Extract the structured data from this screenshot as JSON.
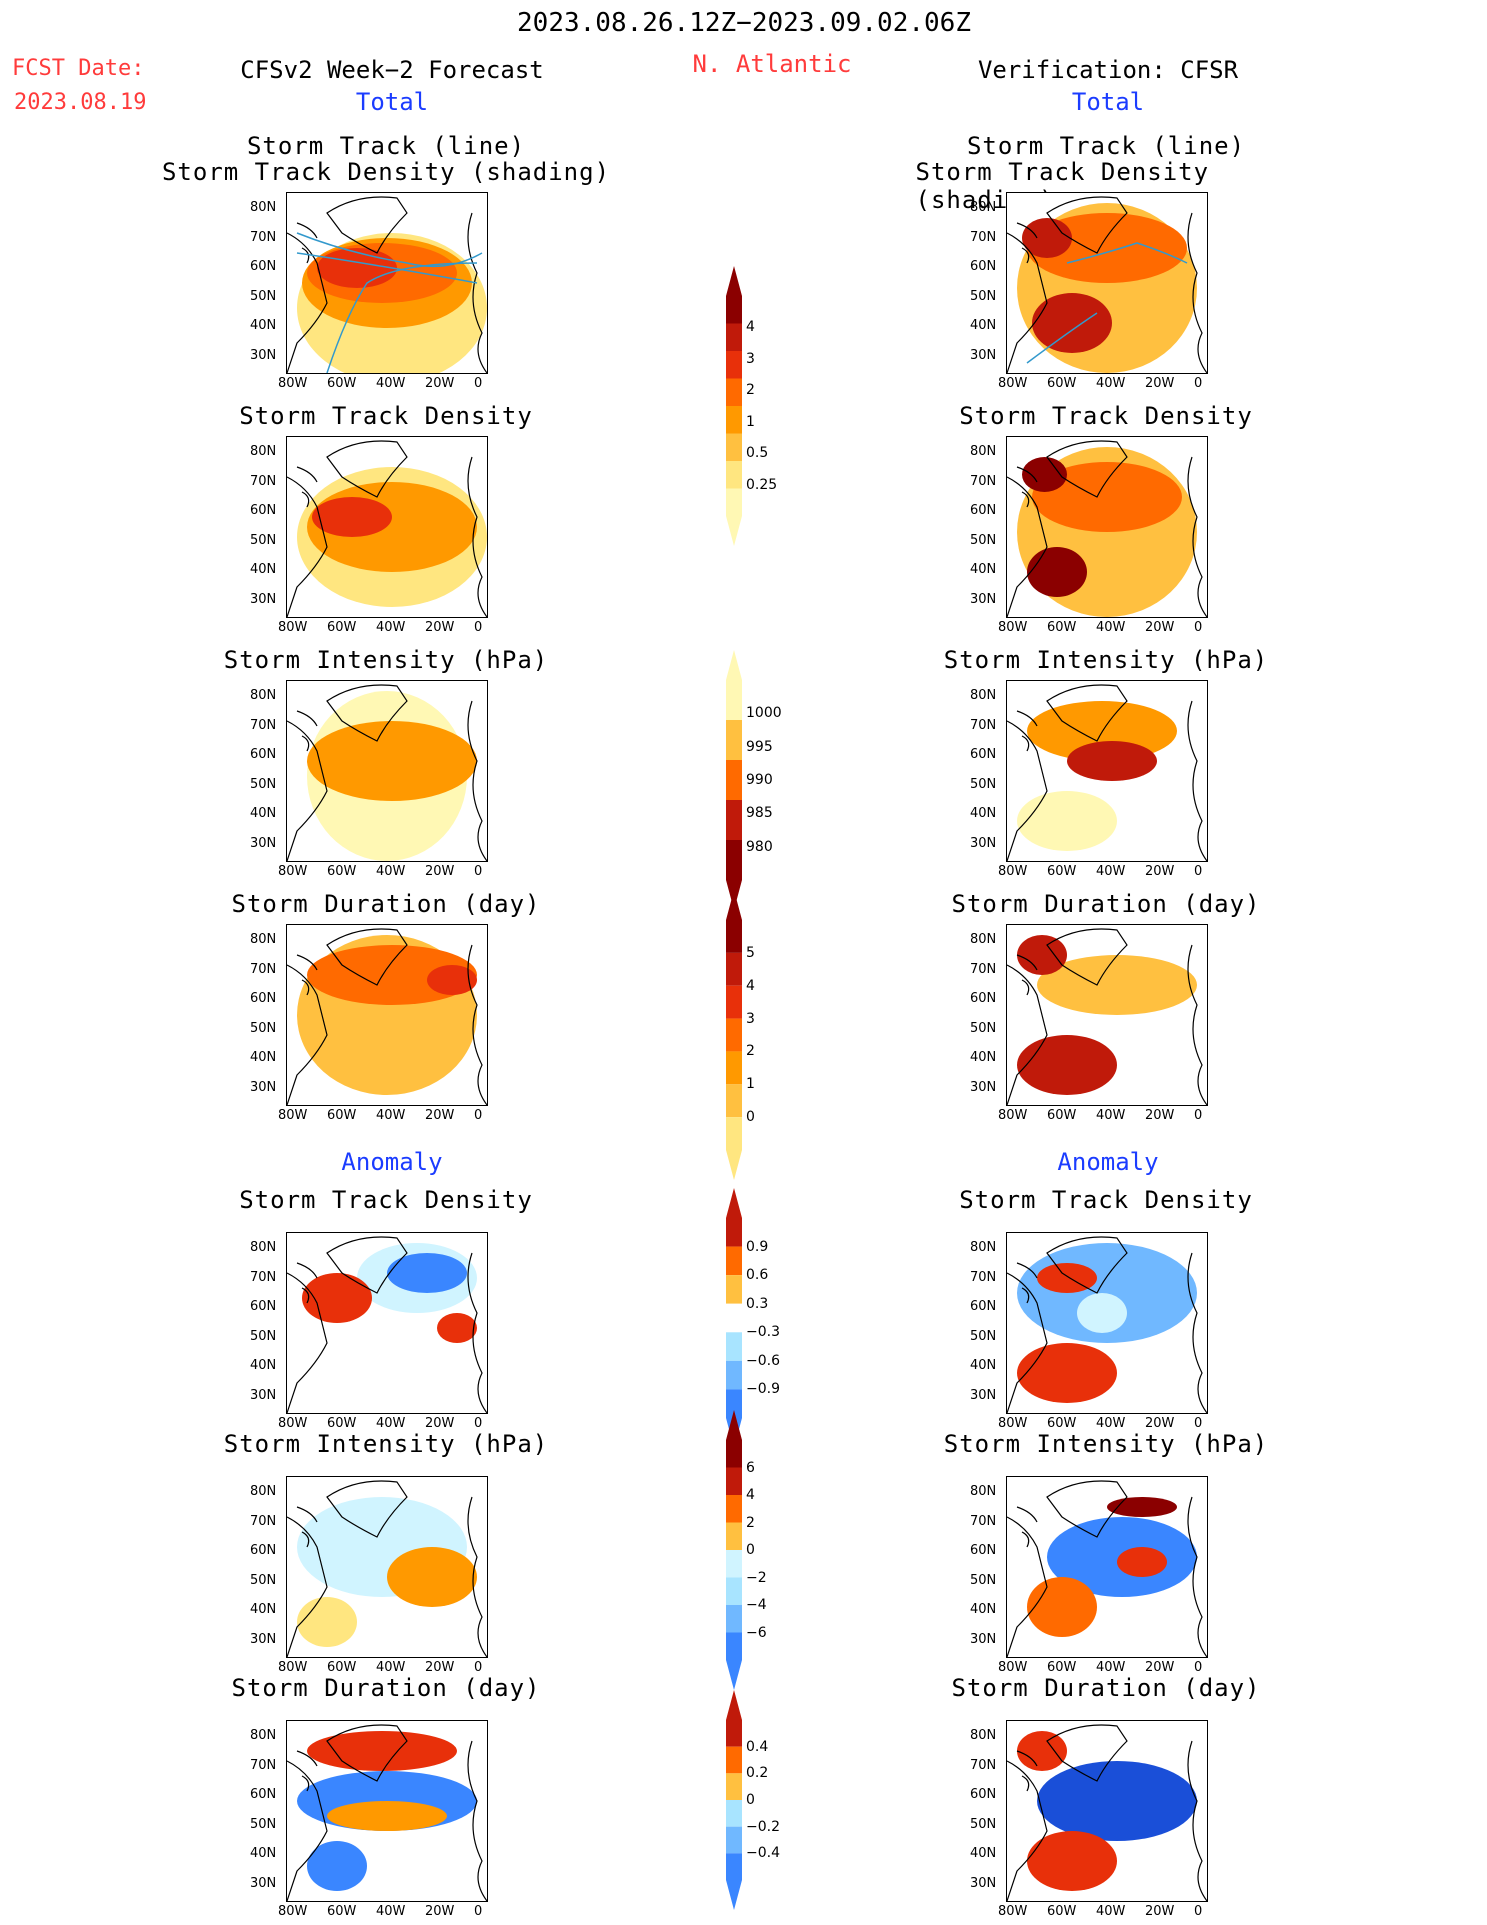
{
  "header": {
    "period": "2023.08.26.12Z−2023.09.02.06Z",
    "fcst_label": "FCST Date:",
    "fcst_date": "2023.08.19",
    "forecast_title": "CFSv2 Week−2 Forecast",
    "region": "N. Atlantic",
    "verification_title": "Verification: CFSR",
    "total_left": "Total",
    "total_right": "Total",
    "anomaly_left": "Anomaly",
    "anomaly_right": "Anomaly"
  },
  "panel_titles": {
    "track_line": "Storm Track (line)",
    "track_shading": "Storm Track Density (shading)",
    "density": "Storm Track Density",
    "intensity": "Storm Intensity (hPa)",
    "duration": "Storm Duration (day)"
  },
  "axes": {
    "lat_labels": [
      "80N",
      "70N",
      "60N",
      "50N",
      "40N",
      "30N"
    ],
    "lon_labels": [
      "80W",
      "60W",
      "40W",
      "20W",
      "0"
    ]
  },
  "colorbars": {
    "density_total": [
      "4",
      "3",
      "2",
      "1",
      "0.5",
      "0.25"
    ],
    "intensity_total": [
      "1000",
      "995",
      "990",
      "985",
      "980"
    ],
    "duration_total": [
      "5",
      "4",
      "3",
      "2",
      "1",
      "0"
    ],
    "density_anom": [
      "0.9",
      "0.6",
      "0.3",
      "−0.3",
      "−0.6",
      "−0.9"
    ],
    "intensity_anom": [
      "6",
      "4",
      "2",
      "0",
      "−2",
      "−4",
      "−6"
    ],
    "duration_anom": [
      "0.4",
      "0.2",
      "0",
      "−0.2",
      "−0.4"
    ]
  },
  "colors": {
    "warm": [
      "#fff8b4",
      "#ffe680",
      "#ffc040",
      "#ff9900",
      "#ff6a00",
      "#e8300a",
      "#c01a0a",
      "#8b0000"
    ],
    "cool": [
      "#d0f4ff",
      "#a8e4ff",
      "#70b8ff",
      "#3a86ff",
      "#1a4fd8"
    ],
    "track_line": "#3399cc"
  }
}
